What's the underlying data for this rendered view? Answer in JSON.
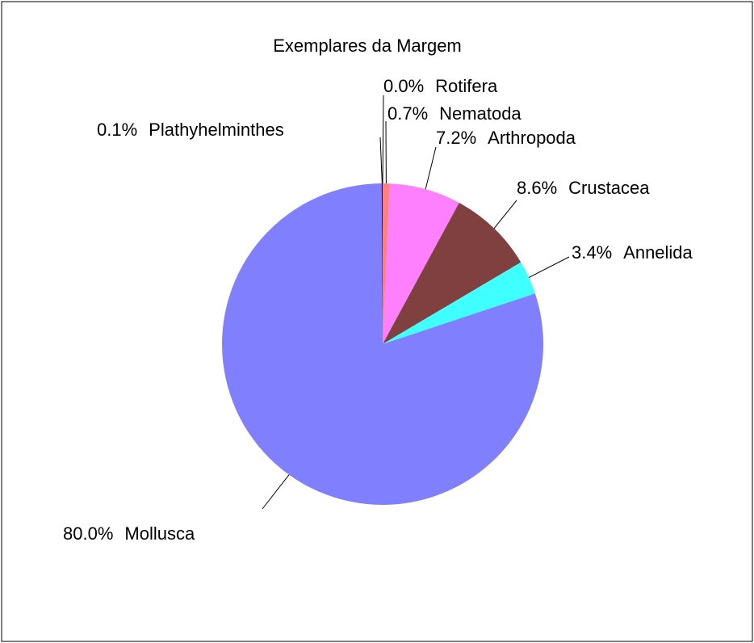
{
  "chart_data": {
    "type": "pie",
    "title": "Exemplares da Margem",
    "categories": [
      "Rotifera",
      "Nematoda",
      "Arthropoda",
      "Crustacea",
      "Annelida",
      "Mollusca",
      "Plathyhelminthes"
    ],
    "values": [
      0,
      0.7,
      7.2,
      8.6,
      3.4,
      80,
      0.1
    ],
    "value_labels": [
      "0.0%",
      "0.7%",
      "7.2%",
      "8.6%",
      "3.4%",
      "80.0%",
      "0.1%"
    ],
    "colors": [
      "#000080",
      "#ff8080",
      "#ff80ff",
      "#804040",
      "#40ffff",
      "#8080ff",
      "#400040"
    ]
  }
}
